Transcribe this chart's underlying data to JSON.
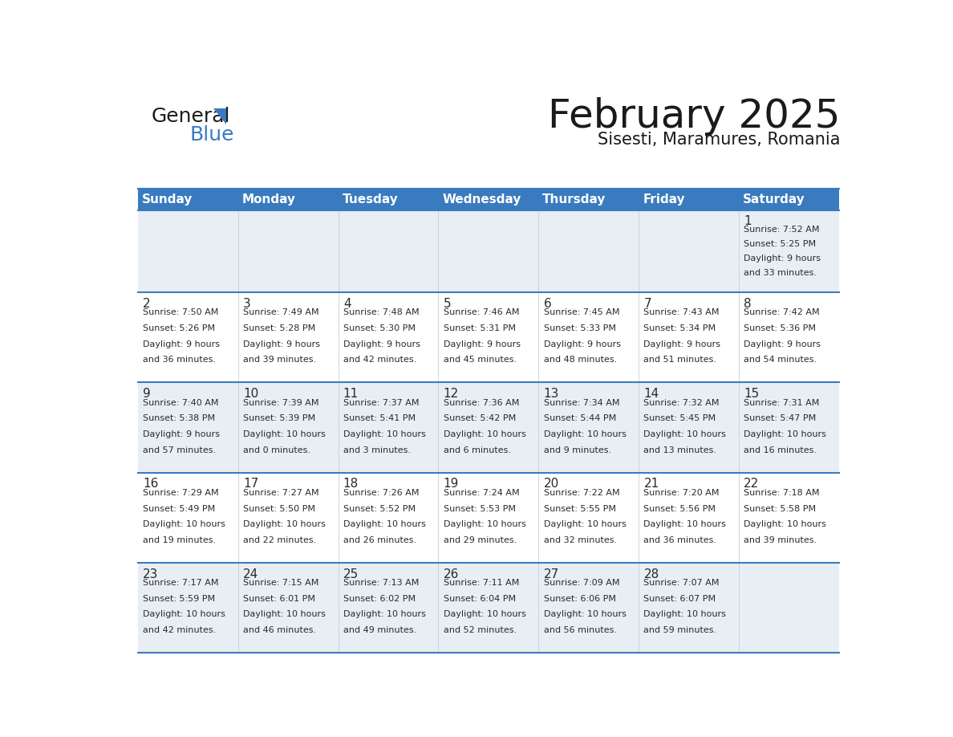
{
  "title": "February 2025",
  "subtitle": "Sisesti, Maramures, Romania",
  "header_bg": "#3a7bbf",
  "header_text_color": "#ffffff",
  "row_bg": [
    "#e8eef4",
    "#ffffff",
    "#e8eef4",
    "#ffffff",
    "#e8eef4"
  ],
  "border_color": "#3a7bbf",
  "day_names": [
    "Sunday",
    "Monday",
    "Tuesday",
    "Wednesday",
    "Thursday",
    "Friday",
    "Saturday"
  ],
  "days_data": [
    {
      "day": 1,
      "col": 6,
      "row": 0,
      "sunrise": "7:52 AM",
      "sunset": "5:25 PM",
      "daylight": "9 hours and 33 minutes."
    },
    {
      "day": 2,
      "col": 0,
      "row": 1,
      "sunrise": "7:50 AM",
      "sunset": "5:26 PM",
      "daylight": "9 hours and 36 minutes."
    },
    {
      "day": 3,
      "col": 1,
      "row": 1,
      "sunrise": "7:49 AM",
      "sunset": "5:28 PM",
      "daylight": "9 hours and 39 minutes."
    },
    {
      "day": 4,
      "col": 2,
      "row": 1,
      "sunrise": "7:48 AM",
      "sunset": "5:30 PM",
      "daylight": "9 hours and 42 minutes."
    },
    {
      "day": 5,
      "col": 3,
      "row": 1,
      "sunrise": "7:46 AM",
      "sunset": "5:31 PM",
      "daylight": "9 hours and 45 minutes."
    },
    {
      "day": 6,
      "col": 4,
      "row": 1,
      "sunrise": "7:45 AM",
      "sunset": "5:33 PM",
      "daylight": "9 hours and 48 minutes."
    },
    {
      "day": 7,
      "col": 5,
      "row": 1,
      "sunrise": "7:43 AM",
      "sunset": "5:34 PM",
      "daylight": "9 hours and 51 minutes."
    },
    {
      "day": 8,
      "col": 6,
      "row": 1,
      "sunrise": "7:42 AM",
      "sunset": "5:36 PM",
      "daylight": "9 hours and 54 minutes."
    },
    {
      "day": 9,
      "col": 0,
      "row": 2,
      "sunrise": "7:40 AM",
      "sunset": "5:38 PM",
      "daylight": "9 hours and 57 minutes."
    },
    {
      "day": 10,
      "col": 1,
      "row": 2,
      "sunrise": "7:39 AM",
      "sunset": "5:39 PM",
      "daylight": "10 hours and 0 minutes."
    },
    {
      "day": 11,
      "col": 2,
      "row": 2,
      "sunrise": "7:37 AM",
      "sunset": "5:41 PM",
      "daylight": "10 hours and 3 minutes."
    },
    {
      "day": 12,
      "col": 3,
      "row": 2,
      "sunrise": "7:36 AM",
      "sunset": "5:42 PM",
      "daylight": "10 hours and 6 minutes."
    },
    {
      "day": 13,
      "col": 4,
      "row": 2,
      "sunrise": "7:34 AM",
      "sunset": "5:44 PM",
      "daylight": "10 hours and 9 minutes."
    },
    {
      "day": 14,
      "col": 5,
      "row": 2,
      "sunrise": "7:32 AM",
      "sunset": "5:45 PM",
      "daylight": "10 hours and 13 minutes."
    },
    {
      "day": 15,
      "col": 6,
      "row": 2,
      "sunrise": "7:31 AM",
      "sunset": "5:47 PM",
      "daylight": "10 hours and 16 minutes."
    },
    {
      "day": 16,
      "col": 0,
      "row": 3,
      "sunrise": "7:29 AM",
      "sunset": "5:49 PM",
      "daylight": "10 hours and 19 minutes."
    },
    {
      "day": 17,
      "col": 1,
      "row": 3,
      "sunrise": "7:27 AM",
      "sunset": "5:50 PM",
      "daylight": "10 hours and 22 minutes."
    },
    {
      "day": 18,
      "col": 2,
      "row": 3,
      "sunrise": "7:26 AM",
      "sunset": "5:52 PM",
      "daylight": "10 hours and 26 minutes."
    },
    {
      "day": 19,
      "col": 3,
      "row": 3,
      "sunrise": "7:24 AM",
      "sunset": "5:53 PM",
      "daylight": "10 hours and 29 minutes."
    },
    {
      "day": 20,
      "col": 4,
      "row": 3,
      "sunrise": "7:22 AM",
      "sunset": "5:55 PM",
      "daylight": "10 hours and 32 minutes."
    },
    {
      "day": 21,
      "col": 5,
      "row": 3,
      "sunrise": "7:20 AM",
      "sunset": "5:56 PM",
      "daylight": "10 hours and 36 minutes."
    },
    {
      "day": 22,
      "col": 6,
      "row": 3,
      "sunrise": "7:18 AM",
      "sunset": "5:58 PM",
      "daylight": "10 hours and 39 minutes."
    },
    {
      "day": 23,
      "col": 0,
      "row": 4,
      "sunrise": "7:17 AM",
      "sunset": "5:59 PM",
      "daylight": "10 hours and 42 minutes."
    },
    {
      "day": 24,
      "col": 1,
      "row": 4,
      "sunrise": "7:15 AM",
      "sunset": "6:01 PM",
      "daylight": "10 hours and 46 minutes."
    },
    {
      "day": 25,
      "col": 2,
      "row": 4,
      "sunrise": "7:13 AM",
      "sunset": "6:02 PM",
      "daylight": "10 hours and 49 minutes."
    },
    {
      "day": 26,
      "col": 3,
      "row": 4,
      "sunrise": "7:11 AM",
      "sunset": "6:04 PM",
      "daylight": "10 hours and 52 minutes."
    },
    {
      "day": 27,
      "col": 4,
      "row": 4,
      "sunrise": "7:09 AM",
      "sunset": "6:06 PM",
      "daylight": "10 hours and 56 minutes."
    },
    {
      "day": 28,
      "col": 5,
      "row": 4,
      "sunrise": "7:07 AM",
      "sunset": "6:07 PM",
      "daylight": "10 hours and 59 minutes."
    }
  ],
  "num_rows": 5,
  "num_cols": 7,
  "logo_general_color": "#1c1c1c",
  "logo_blue_color": "#3a7bbf",
  "logo_triangle_color": "#3a7bbf",
  "title_fontsize": 36,
  "subtitle_fontsize": 15,
  "header_fontsize": 11,
  "day_num_fontsize": 11,
  "info_fontsize": 8
}
